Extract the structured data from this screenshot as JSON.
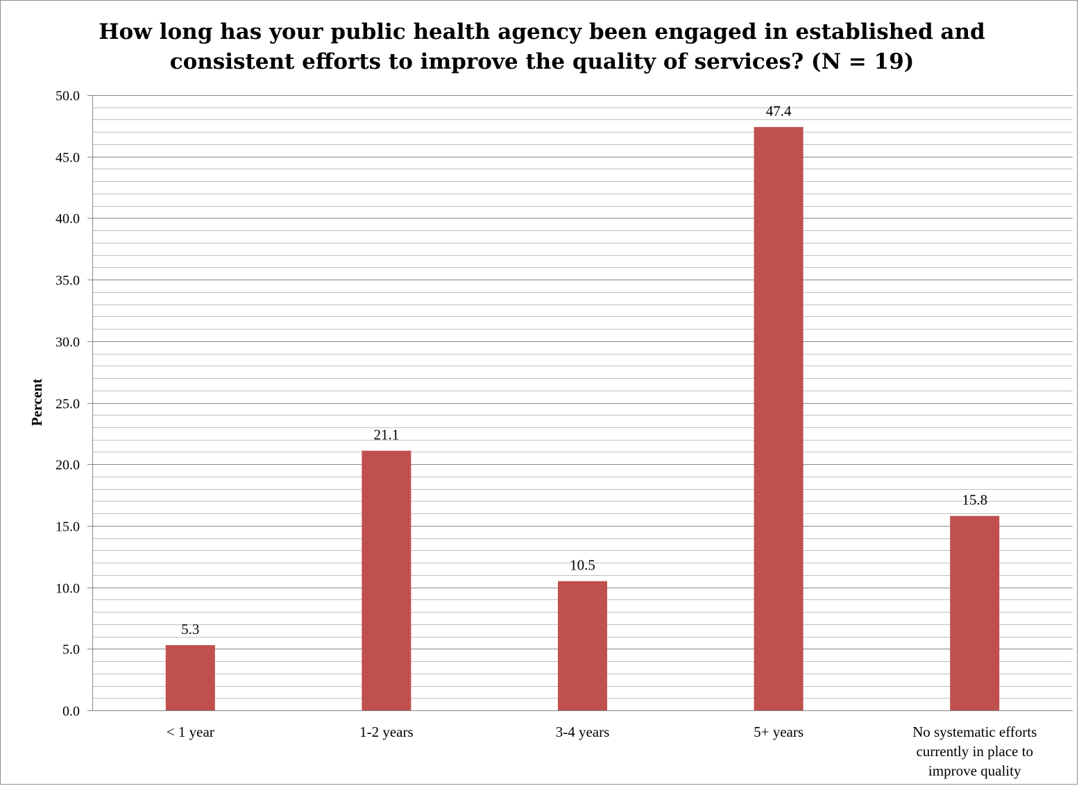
{
  "chart_data": {
    "type": "bar",
    "title": "How long has your public health agency been engaged in established and consistent efforts to improve the quality of services? (N = 19)",
    "xlabel": "",
    "ylabel": "Percent",
    "categories": [
      "< 1 year",
      "1-2 years",
      "3-4 years",
      "5+ years",
      "No systematic efforts currently in place to improve quality"
    ],
    "category_lines": [
      [
        "< 1 year"
      ],
      [
        "1-2 years"
      ],
      [
        "3-4 years"
      ],
      [
        "5+ years"
      ],
      [
        "No systematic efforts",
        "currently in place to",
        "improve quality"
      ]
    ],
    "values": [
      5.3,
      21.1,
      10.5,
      47.4,
      15.8
    ],
    "value_labels": [
      "5.3",
      "21.1",
      "10.5",
      "47.4",
      "15.8"
    ],
    "ylim": [
      0,
      50
    ],
    "major_ticks": [
      "0.0",
      "5.0",
      "10.0",
      "15.0",
      "20.0",
      "25.0",
      "30.0",
      "35.0",
      "40.0",
      "45.0",
      "50.0"
    ],
    "minor_step": 1,
    "grid": true,
    "legend": "none",
    "colors": {
      "bar": "#c0504d",
      "major_grid": "#868686",
      "minor_grid": "#bfbfbf",
      "axis": "#868686"
    }
  }
}
